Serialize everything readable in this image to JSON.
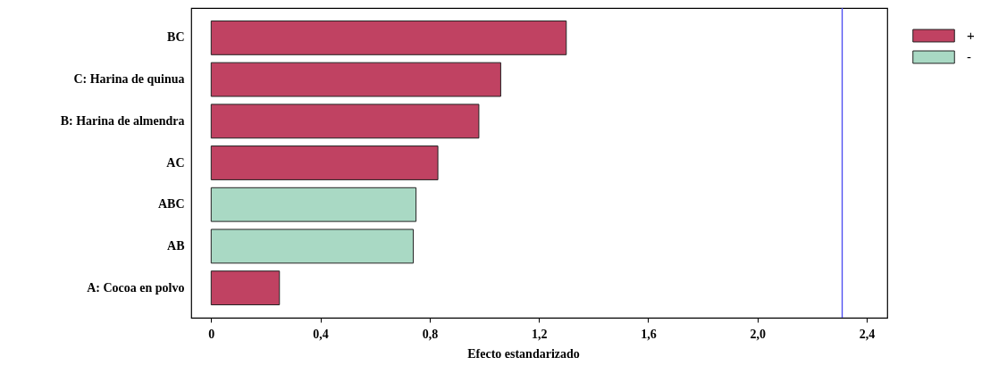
{
  "chart_data": {
    "type": "bar",
    "orientation": "horizontal",
    "categories": [
      "BC",
      "C: Harina de quinua",
      "B: Harina de almendra",
      "AC",
      "ABC",
      "AB",
      "A: Cocoa en polvo"
    ],
    "series": [
      {
        "name": "+",
        "color": "#c04262",
        "values": [
          1.3,
          1.06,
          0.98,
          0.83,
          null,
          null,
          0.25
        ]
      },
      {
        "name": "-",
        "color": "#a9d9c4",
        "values": [
          null,
          null,
          null,
          null,
          0.75,
          0.74,
          null
        ]
      }
    ],
    "xlabel": "Efecto estandarizado",
    "xlim": [
      -0.073,
      2.475
    ],
    "xticks": [
      0,
      {
        "value": 0.4,
        "label": "0,4"
      },
      {
        "value": 0.8,
        "label": "0,8"
      },
      {
        "value": 1.2,
        "label": "1,2"
      },
      {
        "value": 1.6,
        "label": "1,6"
      },
      {
        "value": 2.0,
        "label": "2,0"
      },
      {
        "value": 2.4,
        "label": "2,4"
      }
    ],
    "ref_lines": [
      {
        "axis": "x",
        "value": 2.31,
        "color": "#4848f0"
      }
    ],
    "legend": "top right",
    "grid": false
  }
}
